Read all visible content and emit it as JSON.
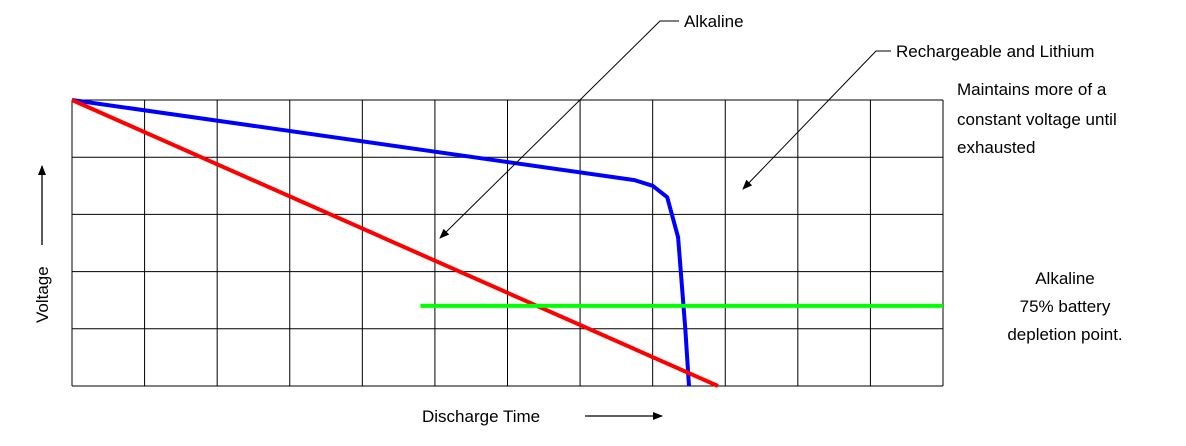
{
  "chart_data": {
    "type": "line",
    "title": "",
    "xlabel": "Discharge Time",
    "ylabel": "Voltage",
    "xlim": [
      0,
      12
    ],
    "ylim": [
      0,
      5
    ],
    "grid": true,
    "grid_columns": 12,
    "grid_rows": 5,
    "legend": "none",
    "series": [
      {
        "color": "#0000ff",
        "points": [
          {
            "x": 0,
            "y": 5.0
          },
          {
            "x": 7.75,
            "y": 3.6
          },
          {
            "x": 8.0,
            "y": 3.5
          },
          {
            "x": 8.2,
            "y": 3.3
          },
          {
            "x": 8.35,
            "y": 2.6
          },
          {
            "x": 8.45,
            "y": 1.0
          },
          {
            "x": 8.5,
            "y": 0.0
          }
        ]
      },
      {
        "color": "#ff0000",
        "points": [
          {
            "x": 0,
            "y": 5.0
          },
          {
            "x": 8.9,
            "y": 0.0
          }
        ]
      },
      {
        "color": "#00ff00",
        "points": [
          {
            "x": 4.8,
            "y": 1.4
          },
          {
            "x": 12.0,
            "y": 1.4
          }
        ]
      }
    ],
    "annotations": [
      {
        "id": "alkaline",
        "lines": [
          "Alkaline"
        ]
      },
      {
        "id": "rechargeable",
        "lines": [
          "Rechargeable and Lithium"
        ]
      },
      {
        "id": "maintains",
        "lines": [
          "Maintains more of a",
          "constant voltage until",
          "exhausted"
        ]
      },
      {
        "id": "depletion",
        "lines": [
          "Alkaline",
          "75% battery",
          "depletion point."
        ]
      }
    ]
  }
}
